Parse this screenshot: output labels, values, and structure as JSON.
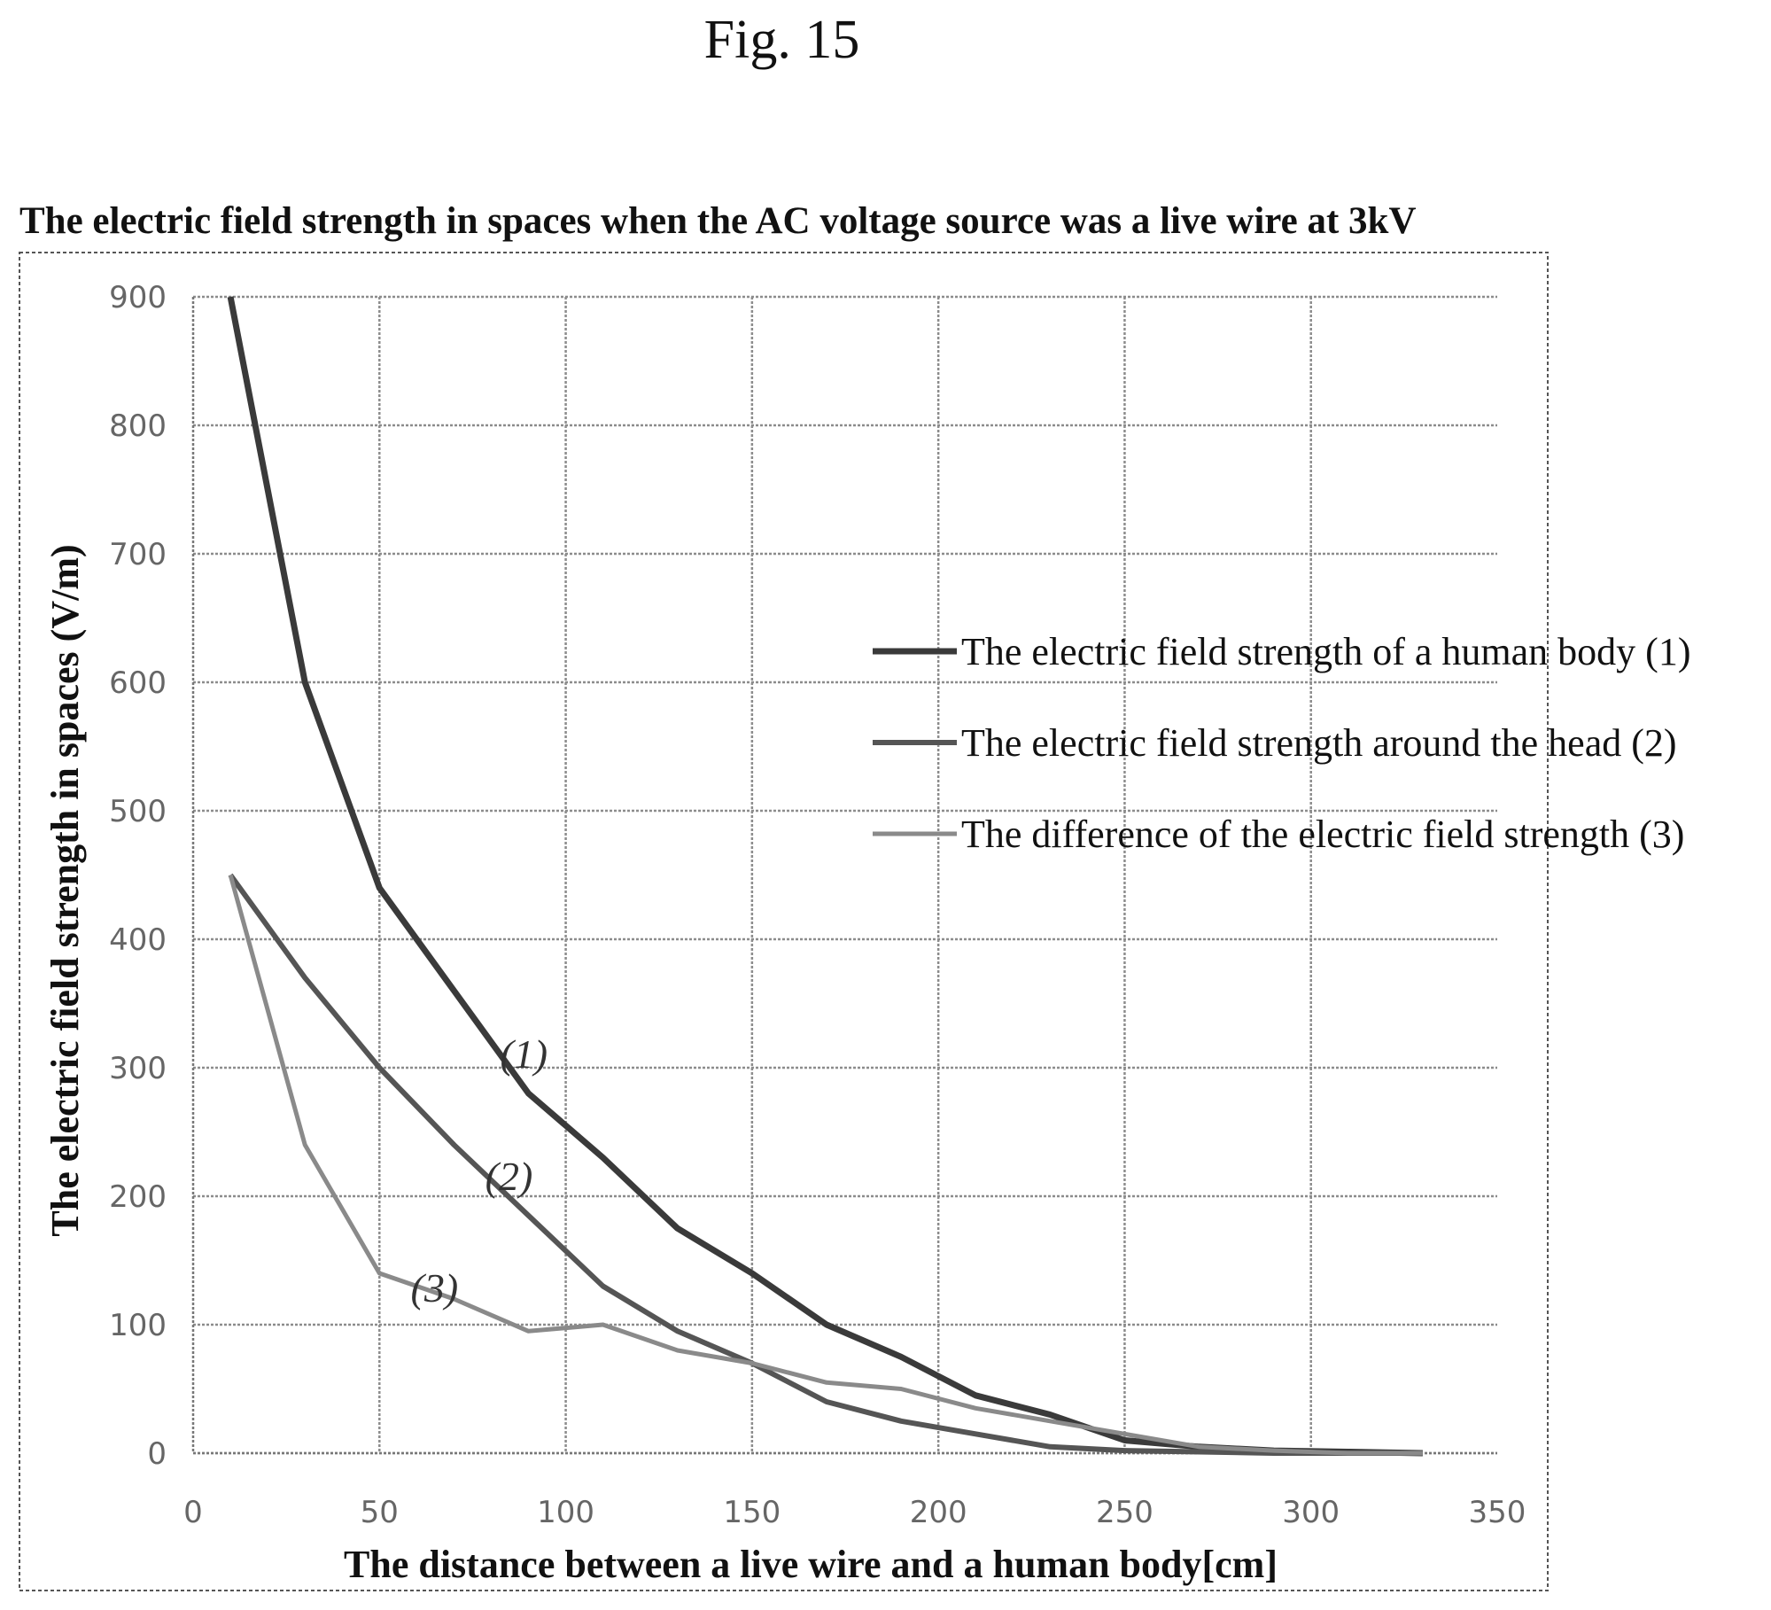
{
  "figure_label": "Fig. 15",
  "chart_data": {
    "type": "line",
    "title": "The electric field strength in spaces when the AC voltage source was a live wire at 3kV",
    "xlabel": "The distance between a live wire and a human body[cm]",
    "ylabel": "The electric field strength in spaces (V/m)",
    "xlim": [
      0,
      350
    ],
    "ylim": [
      0,
      900
    ],
    "xticks": [
      0,
      50,
      100,
      150,
      200,
      250,
      300,
      350
    ],
    "yticks": [
      0,
      100,
      200,
      300,
      400,
      500,
      600,
      700,
      800,
      900
    ],
    "grid": true,
    "legend_position": "right",
    "series": [
      {
        "name": "The electric field strength of a human body (1)",
        "curve_label": "(1)",
        "color": "#3a3a3a",
        "x": [
          10,
          30,
          50,
          70,
          90,
          110,
          130,
          150,
          170,
          190,
          210,
          230,
          250,
          270,
          290,
          310,
          330
        ],
        "y": [
          900,
          600,
          440,
          360,
          280,
          230,
          175,
          140,
          100,
          75,
          45,
          30,
          10,
          5,
          2,
          1,
          0
        ]
      },
      {
        "name": "The electric field strength around the head (2)",
        "curve_label": "(2)",
        "color": "#555555",
        "x": [
          10,
          30,
          50,
          70,
          90,
          110,
          130,
          150,
          170,
          190,
          210,
          230,
          250,
          270,
          290,
          310,
          330
        ],
        "y": [
          450,
          370,
          300,
          240,
          185,
          130,
          95,
          70,
          40,
          25,
          15,
          5,
          2,
          1,
          0,
          0,
          0
        ]
      },
      {
        "name": "The difference of the electric field strength (3)",
        "curve_label": "(3)",
        "color": "#8a8a8a",
        "x": [
          10,
          30,
          50,
          70,
          90,
          110,
          130,
          150,
          170,
          190,
          210,
          230,
          250,
          270,
          290,
          310,
          330
        ],
        "y": [
          450,
          240,
          140,
          120,
          95,
          100,
          80,
          70,
          55,
          50,
          35,
          25,
          15,
          5,
          2,
          0,
          0
        ]
      }
    ]
  }
}
